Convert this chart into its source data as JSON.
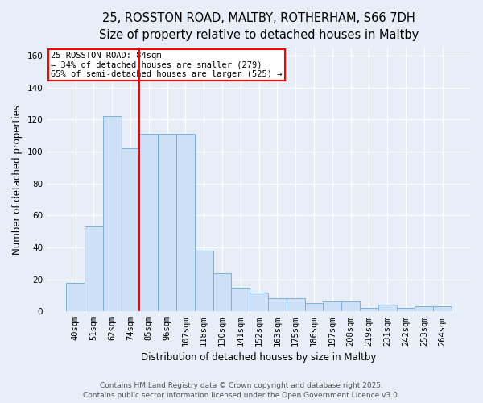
{
  "title_line1": "25, ROSSTON ROAD, MALTBY, ROTHERHAM, S66 7DH",
  "title_line2": "Size of property relative to detached houses in Maltby",
  "xlabel": "Distribution of detached houses by size in Maltby",
  "ylabel": "Number of detached properties",
  "categories": [
    "40sqm",
    "51sqm",
    "62sqm",
    "74sqm",
    "85sqm",
    "96sqm",
    "107sqm",
    "118sqm",
    "130sqm",
    "141sqm",
    "152sqm",
    "163sqm",
    "175sqm",
    "186sqm",
    "197sqm",
    "208sqm",
    "219sqm",
    "231sqm",
    "242sqm",
    "253sqm",
    "264sqm"
  ],
  "values": [
    18,
    53,
    122,
    102,
    111,
    111,
    111,
    38,
    24,
    15,
    12,
    8,
    8,
    5,
    6,
    6,
    2,
    4,
    2,
    3,
    3
  ],
  "bar_color": "#cde0f5",
  "bar_edge_color": "#7ab3d8",
  "red_line_index": 4,
  "annotation_title": "25 ROSSTON ROAD: 84sqm",
  "annotation_line2": "← 34% of detached houses are smaller (279)",
  "annotation_line3": "65% of semi-detached houses are larger (525) →",
  "ylim": [
    0,
    165
  ],
  "yticks": [
    0,
    20,
    40,
    60,
    80,
    100,
    120,
    140,
    160
  ],
  "footer_line1": "Contains HM Land Registry data © Crown copyright and database right 2025.",
  "footer_line2": "Contains public sector information licensed under the Open Government Licence v3.0.",
  "bg_color": "#e8eef8",
  "plot_bg_color": "#e8eef8",
  "grid_color": "#ffffff",
  "title_fontsize": 10.5,
  "axis_label_fontsize": 8.5,
  "tick_fontsize": 7.5,
  "footer_fontsize": 6.5,
  "annotation_fontsize": 7.5
}
